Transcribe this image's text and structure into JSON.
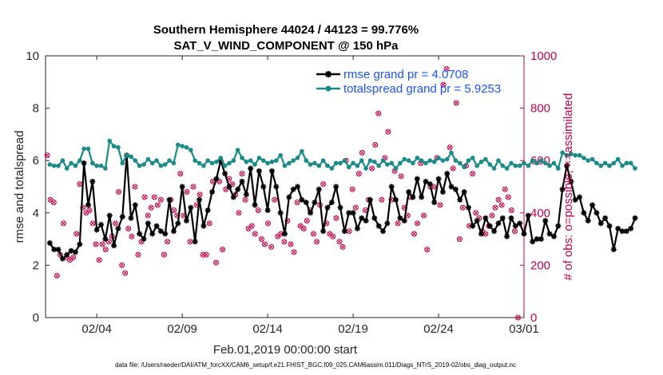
{
  "chart_data": {
    "type": "line",
    "title": "Southern Hemisphere 44024 / 44123 = 99.776%",
    "subtitle": "SAT_V_WIND_COMPONENT @ 150 hPa",
    "xlabel": "Feb.01,2019 00:00:00 start",
    "ylabel": "rmse and totalspread",
    "ylabel_right": "# of obs: o=possible; ×=assimilated",
    "footnote": "data file: /Users/raeder/DAI/ATM_forcXX/CAM6_setup/f.e21.FHIST_BGC.f09_025.CAM6assim.011/Diags_NTrS_2019-02/obs_diag_output.nc",
    "xlim": [
      0,
      28
    ],
    "ylim": [
      0,
      10
    ],
    "ylim_right": [
      0,
      1000
    ],
    "xticks": [
      3,
      8,
      13,
      18,
      23,
      28
    ],
    "xtick_labels": [
      "02/04",
      "02/09",
      "02/14",
      "02/19",
      "02/24",
      "03/01"
    ],
    "yticks": [
      0,
      2,
      4,
      6,
      8,
      10
    ],
    "yticks_right": [
      0,
      200,
      400,
      600,
      800,
      1000
    ],
    "legend_location": "top-right",
    "series": [
      {
        "name": "rmse grand pr = 4.0708",
        "color": "#000000",
        "marker": "asterisk",
        "x_start": 0.25,
        "x_step": 0.25,
        "values": [
          2.85,
          2.6,
          2.6,
          2.25,
          2.4,
          2.55,
          2.5,
          2.8,
          5.9,
          4.3,
          5.2,
          3.35,
          3.55,
          3.0,
          3.9,
          2.75,
          3.4,
          3.85,
          6.2,
          3.8,
          4.3,
          3.2,
          3.0,
          3.6,
          3.2,
          3.5,
          3.3,
          3.2,
          4.5,
          3.3,
          3.6,
          5.0,
          3.7,
          4.2,
          2.9,
          4.5,
          3.5,
          4.1,
          4.8,
          5.3,
          6.0,
          5.5,
          5.0,
          4.6,
          4.9,
          5.2,
          4.7,
          5.7,
          4.3,
          5.6,
          5.0,
          4.1,
          5.6,
          5.0,
          4.0,
          3.2,
          4.6,
          4.9,
          5.0,
          4.5,
          4.4,
          4.0,
          4.4,
          4.9,
          3.3,
          4.2,
          4.4,
          5.0,
          4.2,
          3.3,
          4.0,
          4.0,
          3.4,
          3.8,
          3.7,
          4.5,
          3.8,
          3.5,
          3.3,
          3.6,
          5.0,
          4.5,
          3.8,
          3.7,
          4.8,
          4.6,
          5.3,
          4.6,
          5.2,
          5.1,
          4.4,
          5.3,
          4.8,
          5.5,
          5.0,
          4.9,
          4.5,
          4.8,
          4.2,
          3.5,
          3.7,
          3.2,
          3.8,
          3.5,
          3.3,
          3.6,
          3.8,
          3.1,
          3.8,
          3.5,
          3.6,
          3.2,
          3.9,
          2.9,
          3.0,
          3.0,
          3.7,
          3.2,
          3.1,
          3.5,
          4.9,
          5.8,
          5.2,
          4.5,
          4.6,
          4.0,
          3.7,
          4.3,
          4.0,
          3.6,
          3.8,
          3.5,
          2.6,
          3.4,
          3.3,
          3.3,
          3.4,
          3.8
        ]
      },
      {
        "name": "totalspread grand pr = 5.9253",
        "color": "#1a8a8a",
        "marker": "circle",
        "x_start": 0.25,
        "x_step": 0.25,
        "values": [
          5.85,
          5.8,
          5.8,
          6.0,
          5.7,
          5.9,
          5.8,
          6.0,
          6.45,
          6.45,
          5.9,
          5.8,
          5.8,
          5.7,
          6.75,
          6.55,
          6.5,
          5.9,
          6.2,
          6.15,
          6.0,
          5.8,
          5.85,
          6.05,
          5.9,
          6.0,
          5.8,
          5.85,
          6.0,
          5.9,
          6.6,
          6.55,
          6.5,
          6.4,
          6.0,
          5.9,
          5.8,
          6.0,
          5.9,
          5.95,
          6.1,
          5.8,
          5.9,
          6.0,
          6.4,
          6.1,
          5.95,
          6.0,
          5.85,
          6.1,
          6.0,
          5.9,
          5.95,
          6.0,
          6.2,
          5.8,
          5.9,
          6.0,
          6.1,
          6.35,
          6.0,
          5.85,
          5.9,
          5.8,
          6.0,
          5.8,
          5.7,
          5.9,
          5.9,
          6.0,
          5.75,
          5.9,
          5.8,
          6.0,
          5.7,
          6.0,
          5.95,
          5.8,
          6.0,
          5.85,
          5.9,
          5.7,
          5.9,
          6.05,
          6.0,
          5.9,
          6.1,
          6.0,
          5.9,
          6.0,
          5.95,
          6.1,
          6.0,
          6.05,
          6.3,
          6.0,
          5.9,
          5.75,
          6.0,
          6.1,
          5.8,
          5.95,
          6.05,
          5.85,
          5.7,
          6.0,
          5.8,
          5.7,
          5.9,
          5.8,
          5.8,
          5.9,
          5.8,
          6.0,
          5.9,
          6.0,
          5.9,
          5.8,
          5.9,
          5.7,
          6.3,
          6.2,
          6.25,
          6.2,
          6.2,
          6.1,
          6.0,
          6.05,
          5.9,
          5.8,
          5.9,
          5.8,
          5.9,
          6.05,
          5.8,
          5.9,
          5.9,
          5.7
        ]
      }
    ],
    "obs_possible": [
      6.2,
      4.5,
      4.4,
      1.6,
      2.4,
      3.6,
      2.3,
      2.2,
      2.3,
      3.2,
      5.1,
      4.2,
      4.0,
      4.1,
      3.6,
      2.8,
      2.2,
      2.8,
      2.6,
      2.9,
      3.1,
      3.6,
      4.8,
      2.0,
      1.7,
      3.4,
      3.1,
      5.0,
      2.4,
      2.9,
      4.6,
      3.9,
      4.2,
      4.6,
      4.3,
      4.5,
      2.4,
      2.9,
      4.5,
      4.1,
      3.9,
      5.5,
      3.9,
      4.8,
      2.9,
      5.0,
      4.3,
      4.7,
      2.4,
      2.4,
      3.6,
      5.2,
      2.1,
      5.2,
      2.6,
      4.9,
      5.3,
      5.1,
      4.7,
      4.0,
      5.5,
      4.5,
      3.4,
      3.5,
      3.2,
      4.1,
      3.0,
      2.8,
      3.6,
      2.7,
      4.5,
      3.1,
      3.2,
      2.9,
      3.7,
      2.8,
      2.5,
      4.4,
      3.5,
      3.4,
      3.7,
      4.1,
      3.2,
      2.9,
      4.3,
      5.1,
      3.6,
      3.2,
      3.1,
      3.8,
      2.9,
      2.7,
      6.0,
      3.3,
      4.9,
      4.2,
      5.5,
      6.3,
      4.1,
      4.5,
      5.7,
      6.6,
      7.8,
      4.5,
      6.1,
      7.1,
      4.5,
      5.6,
      3.6,
      5.4,
      4.2,
      3.9,
      4.6,
      3.2,
      3.6,
      5.9,
      3.9,
      2.6,
      5.0,
      5.0,
      6.1,
      4.3,
      8.9,
      9.5,
      6.5,
      5.7,
      8.2,
      3.0,
      4.2,
      5.8,
      3.5,
      5.5,
      4.0,
      3.8,
      3.3,
      3.2,
      3.5,
      3.9,
      4.2,
      4.5,
      4.3,
      4.9,
      4.6,
      4.1,
      3.3,
      0.0
    ],
    "obs_assimilated": [
      6.2,
      4.5,
      4.4,
      1.6,
      2.4,
      3.6,
      2.3,
      2.2,
      2.3,
      3.2,
      5.1,
      4.2,
      4.0,
      4.1,
      3.6,
      2.8,
      2.2,
      2.8,
      2.6,
      2.9,
      3.1,
      3.6,
      4.8,
      2.0,
      1.7,
      3.4,
      3.1,
      5.0,
      2.4,
      2.9,
      4.6,
      3.9,
      4.2,
      4.6,
      4.3,
      4.5,
      2.4,
      2.9,
      4.5,
      4.1,
      3.9,
      5.5,
      3.9,
      4.8,
      2.9,
      5.0,
      4.3,
      4.7,
      2.4,
      2.4,
      3.6,
      5.2,
      2.1,
      5.2,
      2.6,
      4.9,
      5.3,
      5.1,
      4.7,
      4.0,
      5.5,
      4.5,
      3.4,
      3.5,
      3.2,
      4.1,
      3.0,
      2.8,
      3.6,
      2.7,
      4.5,
      3.1,
      3.2,
      2.9,
      3.7,
      2.8,
      2.5,
      4.4,
      3.5,
      3.4,
      3.7,
      4.1,
      3.2,
      2.9,
      4.3,
      5.1,
      3.6,
      3.2,
      3.1,
      3.8,
      2.9,
      2.7,
      6.0,
      3.3,
      4.9,
      4.2,
      5.5,
      6.3,
      4.1,
      4.5,
      5.7,
      6.6,
      7.8,
      4.5,
      6.1,
      7.1,
      4.5,
      5.6,
      3.6,
      5.4,
      4.2,
      3.9,
      4.6,
      3.2,
      3.6,
      5.9,
      3.9,
      2.6,
      5.0,
      5.0,
      6.1,
      4.3,
      8.9,
      9.5,
      6.5,
      5.7,
      8.2,
      3.0,
      4.2,
      5.8,
      3.5,
      5.5,
      4.0,
      3.8,
      3.3,
      3.2,
      3.5,
      3.9,
      4.2,
      4.5,
      4.3,
      4.9,
      4.6,
      4.1,
      3.3,
      0.0
    ],
    "obs_x_step": 0.19,
    "colors": {
      "obs": "#c8004b",
      "axis": "#262626",
      "legend_text": "#1a53ff"
    }
  }
}
